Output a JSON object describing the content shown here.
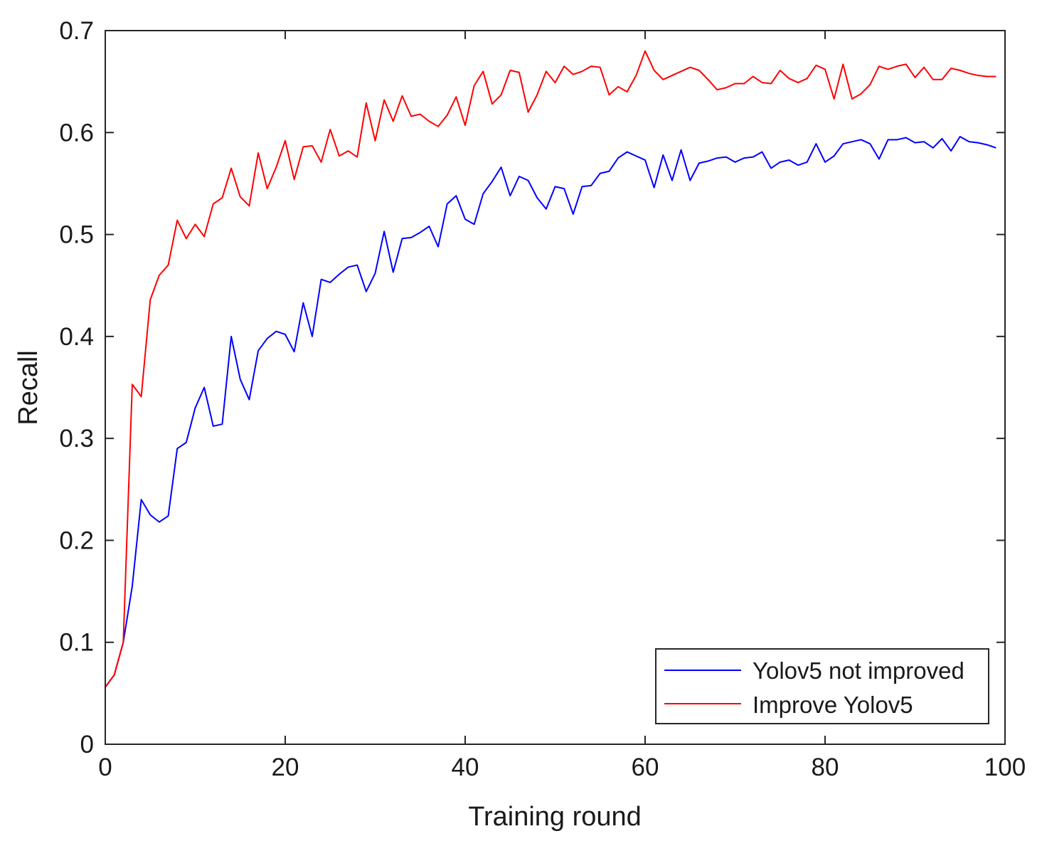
{
  "chart_data": {
    "type": "line",
    "title": "",
    "xlabel": "Training round",
    "ylabel": "Recall",
    "xlim": [
      0,
      100
    ],
    "ylim": [
      0,
      0.7
    ],
    "xticks": [
      0,
      20,
      40,
      60,
      80,
      100
    ],
    "xtick_labels": [
      "0",
      "20",
      "40",
      "60",
      "80",
      "100"
    ],
    "yticks": [
      0,
      0.1,
      0.2,
      0.3,
      0.4,
      0.5,
      0.6,
      0.7
    ],
    "ytick_labels": [
      "0",
      "0.1",
      "0.2",
      "0.3",
      "0.4",
      "0.5",
      "0.6",
      "0.7"
    ],
    "grid": false,
    "legend_position": "bottom-right",
    "x": [
      0,
      1,
      2,
      3,
      4,
      5,
      6,
      7,
      8,
      9,
      10,
      11,
      12,
      13,
      14,
      15,
      16,
      17,
      18,
      19,
      20,
      21,
      22,
      23,
      24,
      25,
      26,
      27,
      28,
      29,
      30,
      31,
      32,
      33,
      34,
      35,
      36,
      37,
      38,
      39,
      40,
      41,
      42,
      43,
      44,
      45,
      46,
      47,
      48,
      49,
      50,
      51,
      52,
      53,
      54,
      55,
      56,
      57,
      58,
      59,
      60,
      61,
      62,
      63,
      64,
      65,
      66,
      67,
      68,
      69,
      70,
      71,
      72,
      73,
      74,
      75,
      76,
      77,
      78,
      79,
      80,
      81,
      82,
      83,
      84,
      85,
      86,
      87,
      88,
      89,
      90,
      91,
      92,
      93,
      94,
      95,
      96,
      97,
      98,
      99
    ],
    "series": [
      {
        "name": "Yolov5 not improved",
        "color": "#0000ff",
        "values": [
          0.056,
          0.068,
          0.1,
          0.155,
          0.24,
          0.225,
          0.218,
          0.224,
          0.29,
          0.296,
          0.33,
          0.35,
          0.312,
          0.314,
          0.4,
          0.358,
          0.338,
          0.386,
          0.398,
          0.405,
          0.402,
          0.385,
          0.433,
          0.4,
          0.456,
          0.453,
          0.461,
          0.468,
          0.47,
          0.444,
          0.462,
          0.503,
          0.463,
          0.496,
          0.497,
          0.502,
          0.508,
          0.488,
          0.53,
          0.538,
          0.515,
          0.51,
          0.54,
          0.552,
          0.566,
          0.538,
          0.557,
          0.553,
          0.536,
          0.525,
          0.547,
          0.545,
          0.52,
          0.547,
          0.548,
          0.56,
          0.562,
          0.575,
          0.581,
          0.577,
          0.573,
          0.546,
          0.578,
          0.553,
          0.583,
          0.553,
          0.57,
          0.572,
          0.575,
          0.576,
          0.571,
          0.575,
          0.576,
          0.581,
          0.565,
          0.571,
          0.573,
          0.568,
          0.571,
          0.589,
          0.571,
          0.577,
          0.589,
          0.591,
          0.593,
          0.589,
          0.574,
          0.593,
          0.593,
          0.595,
          0.59,
          0.591,
          0.585,
          0.594,
          0.582,
          0.596,
          0.591,
          0.59,
          0.588,
          0.585
        ]
      },
      {
        "name": "Improve Yolov5",
        "color": "#ff0000",
        "values": [
          0.056,
          0.068,
          0.1,
          0.353,
          0.341,
          0.436,
          0.46,
          0.47,
          0.514,
          0.496,
          0.51,
          0.498,
          0.53,
          0.536,
          0.565,
          0.537,
          0.528,
          0.58,
          0.545,
          0.566,
          0.592,
          0.554,
          0.586,
          0.587,
          0.571,
          0.603,
          0.577,
          0.582,
          0.576,
          0.629,
          0.592,
          0.632,
          0.611,
          0.636,
          0.616,
          0.618,
          0.611,
          0.606,
          0.617,
          0.635,
          0.607,
          0.646,
          0.66,
          0.628,
          0.637,
          0.661,
          0.659,
          0.62,
          0.637,
          0.66,
          0.649,
          0.665,
          0.657,
          0.66,
          0.665,
          0.664,
          0.637,
          0.645,
          0.64,
          0.656,
          0.68,
          0.661,
          0.652,
          0.656,
          0.66,
          0.664,
          0.661,
          0.652,
          0.642,
          0.644,
          0.648,
          0.648,
          0.655,
          0.649,
          0.648,
          0.661,
          0.653,
          0.649,
          0.653,
          0.666,
          0.662,
          0.633,
          0.667,
          0.633,
          0.638,
          0.647,
          0.665,
          0.662,
          0.665,
          0.667,
          0.654,
          0.664,
          0.652,
          0.652,
          0.663,
          0.661,
          0.658,
          0.656,
          0.655,
          0.655
        ]
      }
    ]
  }
}
